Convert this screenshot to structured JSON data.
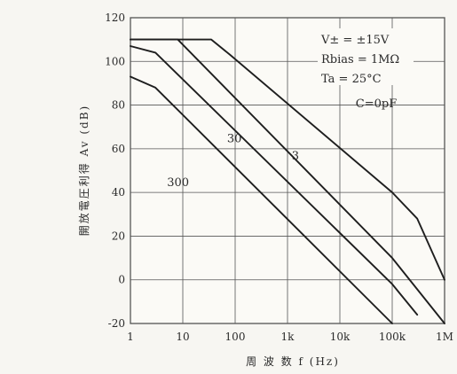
{
  "chart_data": {
    "type": "line",
    "x_scale": "log",
    "grid": true,
    "xlabel": "周 波 数 f (Hz)",
    "ylabel": "開放電圧利得 Av (dB)",
    "x_ticks": [
      {
        "value": 1,
        "label": "1"
      },
      {
        "value": 10,
        "label": "10"
      },
      {
        "value": 100,
        "label": "100"
      },
      {
        "value": 1000,
        "label": "1k"
      },
      {
        "value": 10000,
        "label": "10k"
      },
      {
        "value": 100000,
        "label": "100k"
      },
      {
        "value": 1000000,
        "label": "1M"
      }
    ],
    "y_ticks": [
      -20,
      0,
      20,
      40,
      60,
      80,
      100,
      120
    ],
    "xlim": [
      1,
      1000000
    ],
    "ylim": [
      -20,
      120
    ],
    "conditions": [
      "V± = ±15V",
      "Rbias = 1MΩ",
      "Ta = 25°C"
    ],
    "series": [
      {
        "name": "C=0pF",
        "points": [
          [
            1,
            110
          ],
          [
            35,
            110
          ],
          [
            80,
            103
          ],
          [
            100000,
            40
          ],
          [
            300000,
            28
          ],
          [
            1000000,
            0
          ]
        ]
      },
      {
        "name": "3",
        "points": [
          [
            1,
            110
          ],
          [
            8,
            110
          ],
          [
            100000,
            10
          ],
          [
            1000000,
            -20
          ]
        ]
      },
      {
        "name": "30",
        "points": [
          [
            1,
            107
          ],
          [
            3,
            104
          ],
          [
            100000,
            -2
          ],
          [
            300000,
            -16
          ]
        ]
      },
      {
        "name": "300",
        "points": [
          [
            1,
            93
          ],
          [
            3,
            88
          ],
          [
            100000,
            -20
          ]
        ]
      }
    ],
    "series_label_text": [
      "C=0pF",
      "3",
      "30",
      "300"
    ]
  }
}
